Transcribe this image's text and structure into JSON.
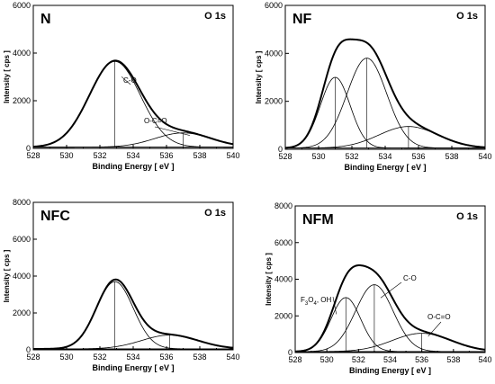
{
  "chart_data": [
    {
      "type": "line",
      "panel_label": "N",
      "region_label": "O 1s",
      "xlabel": "Binding Energy  [ eV ]",
      "ylabel": "Intensity  [ cps ]",
      "xlim": [
        528,
        540
      ],
      "ylim": [
        0,
        6000
      ],
      "xticks": [
        528,
        530,
        532,
        534,
        536,
        538,
        540
      ],
      "yticks": [
        0,
        2000,
        4000,
        6000
      ],
      "baseline": 50,
      "components": [
        {
          "name": "C-O",
          "center": 532.9,
          "height": 3600,
          "fwhm": 3.6
        },
        {
          "name": "O-C=O",
          "center": 537.0,
          "height": 600,
          "fwhm": 4.0
        }
      ],
      "annotations": [
        {
          "text": "C-O",
          "component": 0
        },
        {
          "text": "O-C=O",
          "component": 1
        }
      ]
    },
    {
      "type": "line",
      "panel_label": "NF",
      "region_label": "O 1s",
      "xlabel": "Binding Energy  [ eV ]",
      "ylabel": "Intensity  [ cps ]",
      "xlim": [
        528,
        540
      ],
      "ylim": [
        0,
        6000
      ],
      "xticks": [
        528,
        530,
        532,
        534,
        536,
        538,
        540
      ],
      "yticks": [
        0,
        2000,
        4000,
        6000
      ],
      "baseline": 50,
      "components": [
        {
          "name": "",
          "center": 531.0,
          "height": 2950,
          "fwhm": 2.1
        },
        {
          "name": "",
          "center": 532.9,
          "height": 3750,
          "fwhm": 2.8
        },
        {
          "name": "",
          "center": 535.4,
          "height": 900,
          "fwhm": 4.2
        }
      ],
      "annotations": []
    },
    {
      "type": "line",
      "panel_label": "NFC",
      "region_label": "O 1s",
      "xlabel": "Binding Energy  [ eV ]",
      "ylabel": "Intensity  [ cps ]",
      "xlim": [
        528,
        540
      ],
      "ylim": [
        0,
        8000
      ],
      "xticks": [
        528,
        530,
        532,
        534,
        536,
        538,
        540
      ],
      "yticks": [
        0,
        2000,
        4000,
        6000,
        8000
      ],
      "baseline": 50,
      "components": [
        {
          "name": "",
          "center": 532.9,
          "height": 3650,
          "fwhm": 2.6
        },
        {
          "name": "",
          "center": 536.2,
          "height": 750,
          "fwhm": 4.0
        }
      ],
      "annotations": []
    },
    {
      "type": "line",
      "panel_label": "NFM",
      "region_label": "O 1s",
      "xlabel": "Binding Energy  [ eV ]",
      "ylabel": "Intensity  [ cps ]",
      "xlim": [
        528,
        540
      ],
      "ylim": [
        0,
        8000
      ],
      "xticks": [
        528,
        530,
        532,
        534,
        536,
        538,
        540
      ],
      "yticks": [
        0,
        2000,
        4000,
        6000,
        8000
      ],
      "baseline": 50,
      "components": [
        {
          "name": "F3O4, OH",
          "center": 531.2,
          "height": 2950,
          "fwhm": 2.2
        },
        {
          "name": "C-O",
          "center": 533.0,
          "height": 3650,
          "fwhm": 2.8
        },
        {
          "name": "O-C=O",
          "center": 536.0,
          "height": 1000,
          "fwhm": 4.4
        }
      ],
      "annotations": [
        {
          "text": "F3O4, OH",
          "component": 0
        },
        {
          "text": "C-O",
          "component": 1
        },
        {
          "text": "O-C=O",
          "component": 2
        }
      ]
    }
  ]
}
